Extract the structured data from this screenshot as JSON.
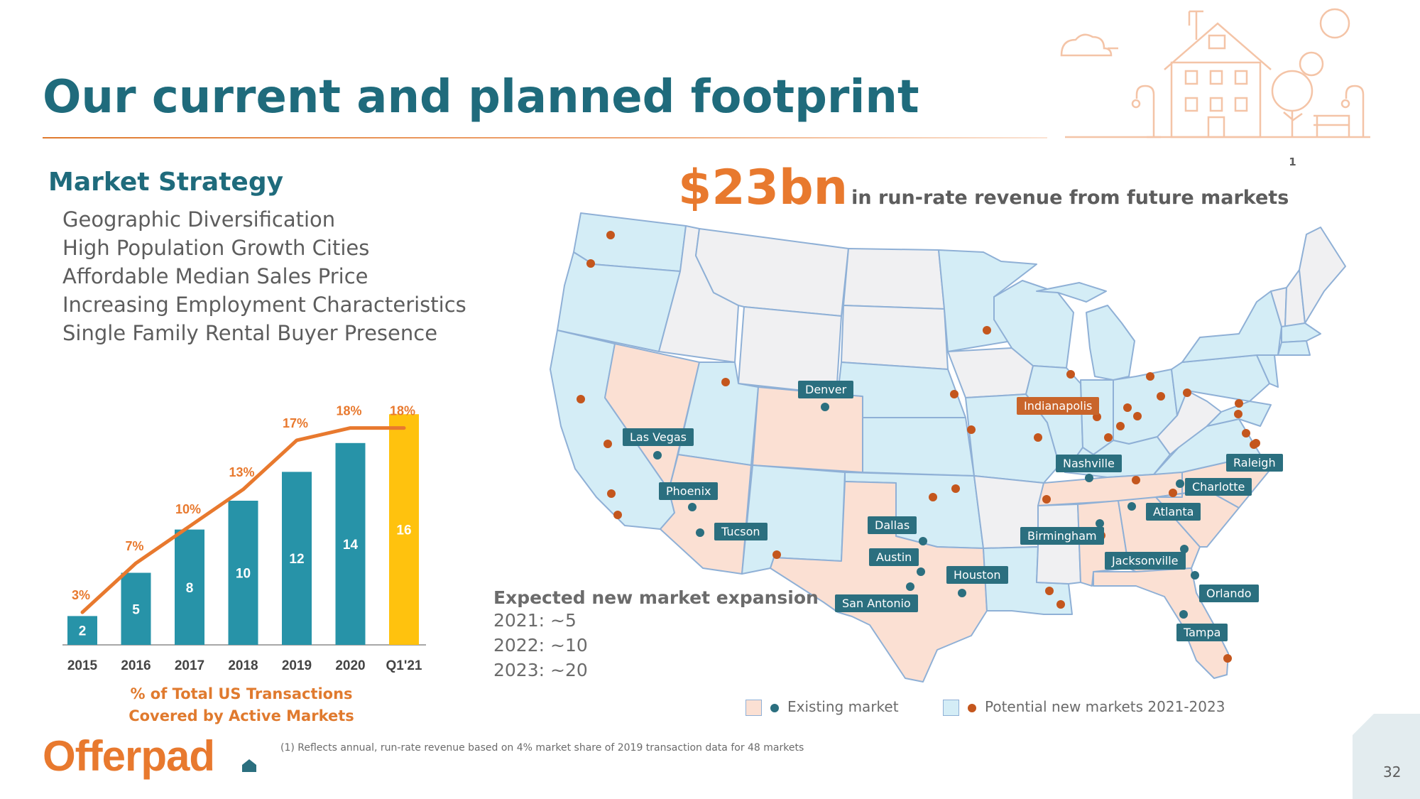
{
  "title": "Our current and planned footprint",
  "market_strategy": {
    "heading": "Market Strategy",
    "items": [
      "Geographic Diversification",
      "High Population Growth Cities",
      "Affordable Median Sales Price",
      "Increasing Employment Characteristics",
      "Single Family Rental Buyer Presence"
    ]
  },
  "chart_data": {
    "type": "bar",
    "categories": [
      "2015",
      "2016",
      "2017",
      "2018",
      "2019",
      "2020",
      "Q1'21"
    ],
    "series": [
      {
        "values": [
          2,
          5,
          8,
          10,
          12,
          14,
          16
        ],
        "colors": [
          "#2793a8",
          "#2793a8",
          "#2793a8",
          "#2793a8",
          "#2793a8",
          "#2793a8",
          "#ffc20e"
        ]
      },
      {
        "type": "line",
        "values": [
          3,
          7,
          10,
          13,
          17,
          18,
          18
        ],
        "labels": [
          "3%",
          "7%",
          "10%",
          "13%",
          "17%",
          "18%",
          "18%"
        ],
        "color": "#e8792e"
      }
    ],
    "caption": "% of Total US Transactions Covered by Active Markets"
  },
  "chart_caption": [
    "% of Total US Transactions",
    "Covered by Active Markets"
  ],
  "revenue": {
    "amount": "$23bn",
    "text": "in run-rate revenue from future markets",
    "footnote_marker": "1"
  },
  "existing_markets": [
    "Denver",
    "Las Vegas",
    "Phoenix",
    "Tucson",
    "Dallas",
    "Austin",
    "San Antonio",
    "Houston",
    "Nashville",
    "Birmingham",
    "Atlanta",
    "Charlotte",
    "Raleigh",
    "Jacksonville",
    "Orlando",
    "Tampa"
  ],
  "highlighted_market": "Indianapolis",
  "expansion": {
    "title": "Expected new market expansion",
    "lines": [
      "2021: ~5",
      "2022: ~10",
      "2023: ~20"
    ]
  },
  "legend": {
    "existing": "Existing market",
    "potential": "Potential new markets 2021-2023"
  },
  "colors": {
    "title_teal": "#1f6b7c",
    "accent_orange": "#e8792e",
    "bar_teal": "#2793a8",
    "bar_yellow": "#ffc20e",
    "existing_state_fill": "#fbe0d3",
    "potential_state_fill": "#d4edf6",
    "other_state_fill": "#f0f0f2",
    "existing_dot": "#2b6f7f",
    "potential_dot": "#c4561d"
  },
  "footnote": "(1) Reflects annual, run-rate revenue based on 4% market share of 2019 transaction data for 48 markets",
  "logo": {
    "text": "Offerpad"
  },
  "page_number": "32"
}
